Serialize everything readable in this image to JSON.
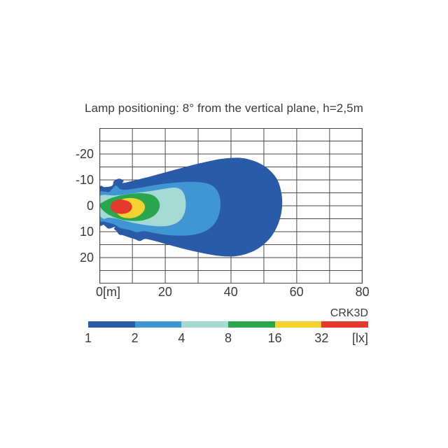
{
  "title": "Lamp positioning: 8° from the vertical plane, h=2,5m",
  "chart_data": {
    "type": "area",
    "subtype": "isolux-contour-map",
    "title": "Lamp positioning: 8° from the vertical plane, h=2,5m",
    "xlim": [
      0,
      80
    ],
    "ylim": [
      -30,
      30
    ],
    "x_grid_step": 10,
    "y_grid_step": 5,
    "grid": true,
    "grid_color": "#4a4a4a",
    "x_ticks": [
      {
        "label": "0[m]",
        "value": 0,
        "align": "left"
      },
      {
        "label": "20",
        "value": 20,
        "align": "center"
      },
      {
        "label": "40",
        "value": 40,
        "align": "center"
      },
      {
        "label": "60",
        "value": 60,
        "align": "center"
      },
      {
        "label": "80",
        "value": 80,
        "align": "center"
      }
    ],
    "y_ticks": [
      {
        "label": "-20",
        "value": -20
      },
      {
        "label": "-10",
        "value": -10
      },
      {
        "label": "0",
        "value": 0
      },
      {
        "label": "10",
        "value": 10
      },
      {
        "label": "20",
        "value": 20
      }
    ],
    "legend": {
      "name": "CRK3D",
      "unit": "[lx]",
      "position": "bottom",
      "levels": [
        "1",
        "2",
        "4",
        "8",
        "16",
        "32"
      ],
      "colors": [
        "#2a5ba8",
        "#3f96d3",
        "#a5d9d4",
        "#2aa64f",
        "#f4d32e",
        "#e5392e"
      ]
    },
    "contours": [
      {
        "level_lx": 1,
        "color": "#2a5ba8",
        "points": [
          [
            0,
            -6.6
          ],
          [
            1.5,
            -7.2
          ],
          [
            3,
            -7.4
          ],
          [
            4,
            -8.0
          ],
          [
            4.4,
            -9.6
          ],
          [
            6,
            -10.5
          ],
          [
            7.3,
            -9.7
          ],
          [
            7,
            -8.8
          ],
          [
            9,
            -9.3
          ],
          [
            11,
            -9.9
          ],
          [
            13.5,
            -10.7
          ],
          [
            16.5,
            -11.7
          ],
          [
            20,
            -12.9
          ],
          [
            23.5,
            -14.1
          ],
          [
            27,
            -15.3
          ],
          [
            30.5,
            -16.4
          ],
          [
            34,
            -17.4
          ],
          [
            37,
            -18.1
          ],
          [
            40,
            -18.5
          ],
          [
            43,
            -18.5
          ],
          [
            45.5,
            -17.9
          ],
          [
            48,
            -16.8
          ],
          [
            50.3,
            -15.2
          ],
          [
            52.2,
            -13.2
          ],
          [
            53.8,
            -10.7
          ],
          [
            54.8,
            -7.8
          ],
          [
            55.4,
            -4.5
          ],
          [
            55.6,
            -0.8
          ],
          [
            55.3,
            2.8
          ],
          [
            54.6,
            6.2
          ],
          [
            53.4,
            9.6
          ],
          [
            51.8,
            12.6
          ],
          [
            49.6,
            15.3
          ],
          [
            47,
            17.4
          ],
          [
            44,
            18.8
          ],
          [
            41,
            19.5
          ],
          [
            38,
            19.5
          ],
          [
            35,
            19.1
          ],
          [
            31.5,
            18.3
          ],
          [
            27.5,
            17.2
          ],
          [
            23.5,
            15.9
          ],
          [
            19.5,
            14.5
          ],
          [
            16,
            13.3
          ],
          [
            13.8,
            12.8
          ],
          [
            12.3,
            13.6
          ],
          [
            10.8,
            12.9
          ],
          [
            9,
            12.2
          ],
          [
            7.2,
            11.4
          ],
          [
            6,
            11.1
          ],
          [
            5.1,
            9.7
          ],
          [
            4.4,
            8.9
          ],
          [
            4.7,
            8.1
          ],
          [
            2.8,
            8.8
          ],
          [
            1.3,
            7.4
          ],
          [
            0,
            6.6
          ]
        ]
      },
      {
        "level_lx": 2,
        "color": "#3f96d3",
        "points": [
          [
            0,
            -4.6
          ],
          [
            1.3,
            -5.5
          ],
          [
            2.8,
            -5.3
          ],
          [
            3.8,
            -6.4
          ],
          [
            5,
            -7.8
          ],
          [
            6.3,
            -6.4
          ],
          [
            8,
            -6.2
          ],
          [
            10,
            -6.5
          ],
          [
            12.5,
            -7.0
          ],
          [
            15.5,
            -7.7
          ],
          [
            19,
            -8.4
          ],
          [
            22.5,
            -8.9
          ],
          [
            26,
            -9.2
          ],
          [
            29.5,
            -9.2
          ],
          [
            32.5,
            -8.7
          ],
          [
            34.6,
            -7.5
          ],
          [
            35.9,
            -5.6
          ],
          [
            36.6,
            -3.2
          ],
          [
            36.8,
            -0.5
          ],
          [
            36.5,
            2.5
          ],
          [
            35.8,
            5.2
          ],
          [
            34.5,
            7.6
          ],
          [
            32.6,
            9.5
          ],
          [
            30,
            10.8
          ],
          [
            27,
            11.4
          ],
          [
            23.5,
            11.5
          ],
          [
            20,
            11.2
          ],
          [
            16.5,
            10.5
          ],
          [
            13.5,
            9.8
          ],
          [
            11.3,
            10.2
          ],
          [
            9.8,
            9.6
          ],
          [
            7.8,
            9.0
          ],
          [
            6,
            8.4
          ],
          [
            4.8,
            7.4
          ],
          [
            3.2,
            6.7
          ],
          [
            1.4,
            6.1
          ],
          [
            0,
            5.0
          ]
        ]
      },
      {
        "level_lx": 4,
        "color": "#a5d9d4",
        "points": [
          [
            0,
            -3.2
          ],
          [
            1.2,
            -4.2
          ],
          [
            2.6,
            -4.1
          ],
          [
            4.5,
            -4.0
          ],
          [
            6.5,
            -4.2
          ],
          [
            9,
            -4.6
          ],
          [
            12,
            -5.1
          ],
          [
            15,
            -5.6
          ],
          [
            18,
            -6.2
          ],
          [
            21,
            -6.8
          ],
          [
            23.2,
            -7.0
          ],
          [
            24.8,
            -6.2
          ],
          [
            25.8,
            -4.3
          ],
          [
            26.2,
            -1.8
          ],
          [
            26.2,
            0.8
          ],
          [
            25.7,
            3.3
          ],
          [
            24.6,
            5.5
          ],
          [
            22.8,
            7.0
          ],
          [
            20.5,
            7.8
          ],
          [
            17.5,
            7.9
          ],
          [
            14.5,
            7.5
          ],
          [
            11.5,
            6.9
          ],
          [
            9,
            6.2
          ],
          [
            6.5,
            5.4
          ],
          [
            4.5,
            4.8
          ],
          [
            2.6,
            4.6
          ],
          [
            1.2,
            5.0
          ],
          [
            0,
            3.2
          ]
        ]
      },
      {
        "level_lx": 8,
        "color": "#2aa64f",
        "points": [
          [
            0,
            -0.5
          ],
          [
            1.8,
            -2.0
          ],
          [
            3.8,
            -3.1
          ],
          [
            6,
            -3.9
          ],
          [
            8.5,
            -4.5
          ],
          [
            11,
            -4.8
          ],
          [
            13.5,
            -4.8
          ],
          [
            15.8,
            -4.3
          ],
          [
            17.2,
            -3.2
          ],
          [
            18.1,
            -1.6
          ],
          [
            18.3,
            0.3
          ],
          [
            17.7,
            2.3
          ],
          [
            16.4,
            4.0
          ],
          [
            14.4,
            5.2
          ],
          [
            12,
            5.8
          ],
          [
            9.5,
            5.8
          ],
          [
            7,
            5.4
          ],
          [
            4.8,
            4.6
          ],
          [
            2.9,
            3.5
          ],
          [
            1.4,
            2.2
          ],
          [
            0.4,
            0.8
          ]
        ]
      },
      {
        "level_lx": 16,
        "color": "#f4d32e",
        "points": [
          [
            4.8,
            0.6
          ],
          [
            5.3,
            -1.1
          ],
          [
            6.5,
            -2.3
          ],
          [
            8,
            -2.9
          ],
          [
            9.6,
            -3.0
          ],
          [
            11.3,
            -2.7
          ],
          [
            12.7,
            -1.9
          ],
          [
            13.6,
            -0.6
          ],
          [
            13.8,
            0.9
          ],
          [
            13.2,
            2.5
          ],
          [
            12,
            3.8
          ],
          [
            10.4,
            4.6
          ],
          [
            8.6,
            4.8
          ],
          [
            6.9,
            4.4
          ],
          [
            5.7,
            3.4
          ],
          [
            4.95,
            2.1
          ]
        ]
      },
      {
        "level_lx": 32,
        "color": "#e5392e",
        "points": [
          [
            3.4,
            0.4
          ],
          [
            3.7,
            -1.0
          ],
          [
            4.6,
            -1.9
          ],
          [
            5.8,
            -2.4
          ],
          [
            7.2,
            -2.3
          ],
          [
            8.6,
            -1.8
          ],
          [
            9.6,
            -0.8
          ],
          [
            9.9,
            0.5
          ],
          [
            9.5,
            1.8
          ],
          [
            8.5,
            2.7
          ],
          [
            7.1,
            3.1
          ],
          [
            5.7,
            3.0
          ],
          [
            4.4,
            2.4
          ],
          [
            3.65,
            1.5
          ]
        ]
      }
    ]
  }
}
